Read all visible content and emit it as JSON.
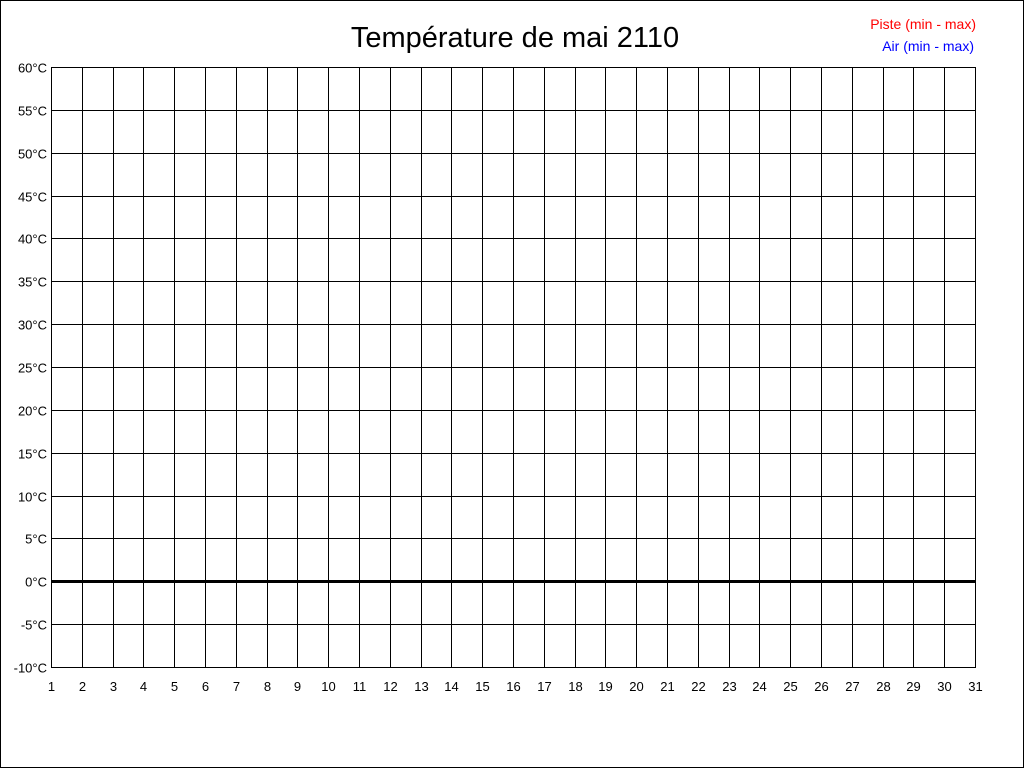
{
  "chart_data": {
    "type": "line",
    "title": "Température de mai 2110",
    "xlabel": "",
    "ylabel": "",
    "x_ticks": [
      "1",
      "2",
      "3",
      "4",
      "5",
      "6",
      "7",
      "8",
      "9",
      "10",
      "11",
      "12",
      "13",
      "14",
      "15",
      "16",
      "17",
      "18",
      "19",
      "20",
      "21",
      "22",
      "23",
      "24",
      "25",
      "26",
      "27",
      "28",
      "29",
      "30",
      "31"
    ],
    "xlim": [
      1,
      31
    ],
    "y_ticks": [
      "-10°C",
      "-5°C",
      "0°C",
      "5°C",
      "10°C",
      "15°C",
      "20°C",
      "25°C",
      "30°C",
      "35°C",
      "40°C",
      "45°C",
      "50°C",
      "55°C",
      "60°C"
    ],
    "ylim": [
      -10,
      60
    ],
    "y_step": 5,
    "grid": true,
    "zero_line_emphasized": true,
    "legend_position": "top-right",
    "series": [
      {
        "name": "Piste (min - max)",
        "color": "#ff0000",
        "values": []
      },
      {
        "name": "Air (min - max)",
        "color": "#0000ff",
        "values": []
      }
    ]
  }
}
